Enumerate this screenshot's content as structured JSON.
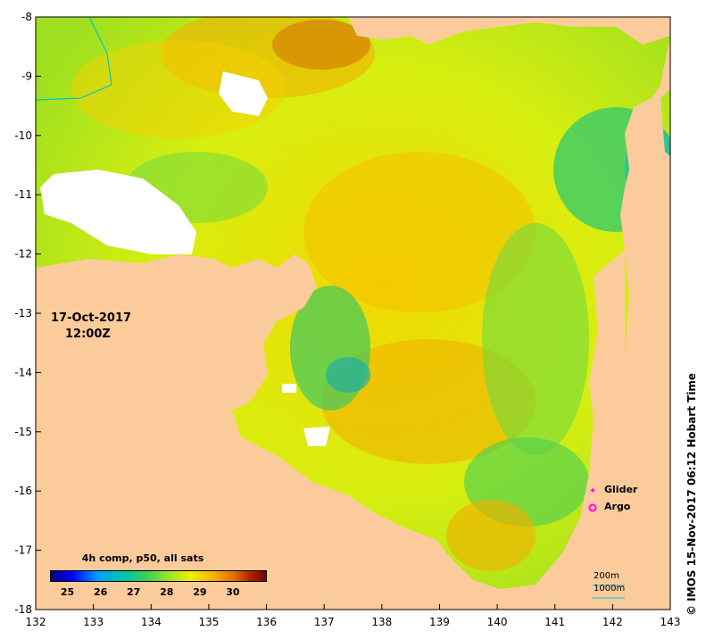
{
  "map": {
    "x_ticks": [
      "132",
      "133",
      "134",
      "135",
      "136",
      "137",
      "138",
      "139",
      "140",
      "141",
      "142",
      "143"
    ],
    "y_ticks": [
      "-8",
      "-9",
      "-10",
      "-11",
      "-12",
      "-13",
      "-14",
      "-15",
      "-16",
      "-17",
      "-18"
    ],
    "x_range": [
      132,
      143
    ],
    "y_range": [
      -18,
      -8
    ],
    "land_color": "#fccb9b",
    "no_data_color": "#ffffff"
  },
  "timestamp": {
    "date": "17-Oct-2017",
    "time": "12:00Z"
  },
  "colorbar": {
    "title": "4h comp, p50, all sats",
    "ticks": [
      "25",
      "26",
      "27",
      "28",
      "29",
      "30"
    ],
    "range": [
      24.5,
      31
    ],
    "colors": [
      "#00007f",
      "#0000ff",
      "#00a0ff",
      "#00c8a0",
      "#3cd250",
      "#a0e628",
      "#f0f000",
      "#f5b400",
      "#e66e00",
      "#b41e00",
      "#780000"
    ]
  },
  "legend": {
    "glider_label": "Glider",
    "argo_label": "Argo",
    "glider_color": "#ff00ff",
    "argo_color": "#ff00ff"
  },
  "depth_contours": {
    "label_200m": "200m",
    "label_1000m": "1000m",
    "line_200m_color": "#00c8c8",
    "line_1000m_color": "#00c8c8"
  },
  "credit": "© IMOS 15-Nov-2017 06:12 Hobart Time"
}
